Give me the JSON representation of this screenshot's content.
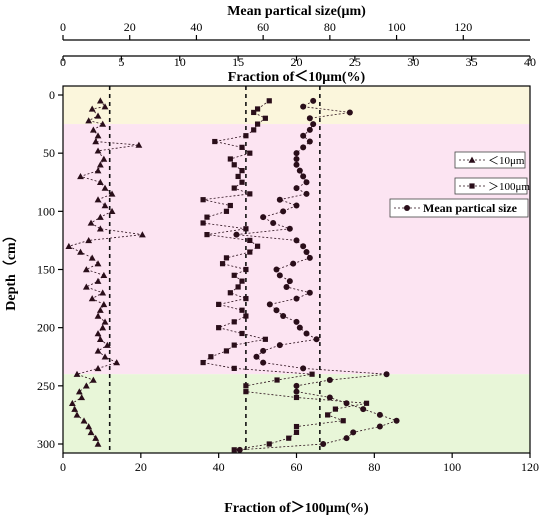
{
  "chart_data": {
    "type": "scatter",
    "title": "",
    "axes": {
      "top1": {
        "label": "Mean partical size(μm)",
        "range": [
          0,
          140
        ],
        "ticks": [
          0,
          20,
          40,
          60,
          80,
          100,
          120
        ]
      },
      "top2": {
        "label": "Fraction of＜10μm(%)",
        "range": [
          0,
          40
        ],
        "ticks": [
          0,
          5,
          10,
          15,
          20,
          25,
          30,
          35,
          40
        ]
      },
      "bottom": {
        "label": "Fraction of＞100μm(%)",
        "range": [
          0,
          120
        ],
        "ticks": [
          0,
          20,
          40,
          60,
          80,
          100,
          120
        ]
      },
      "left": {
        "label": "Depth（cm）",
        "range": [
          0,
          310
        ],
        "ticks": [
          0,
          50,
          100,
          150,
          200,
          250,
          300
        ],
        "reversed": true
      }
    },
    "bands": [
      {
        "from": 0,
        "to": 25,
        "color": "#fbf6dc"
      },
      {
        "from": 25,
        "to": 240,
        "color": "#fce4f2"
      },
      {
        "from": 240,
        "to": 310,
        "color": "#e8f6d8"
      }
    ],
    "series": [
      {
        "name": "＜10μm",
        "axis": "top2",
        "marker": "triangle",
        "color": "#2a0e1a",
        "mean_line": 4,
        "depth": [
          5,
          10,
          12,
          18,
          22,
          25,
          30,
          35,
          40,
          43,
          48,
          55,
          60,
          65,
          70,
          75,
          80,
          85,
          90,
          95,
          100,
          105,
          110,
          115,
          120,
          125,
          130,
          135,
          140,
          145,
          150,
          155,
          160,
          165,
          170,
          175,
          180,
          185,
          190,
          195,
          200,
          205,
          210,
          215,
          220,
          225,
          230,
          235,
          240,
          245,
          250,
          255,
          260,
          265,
          270,
          275,
          280,
          285,
          290,
          295,
          300
        ],
        "values": [
          3.2,
          3.6,
          2.5,
          3.0,
          2.2,
          3.4,
          2.6,
          3.0,
          2.8,
          6.5,
          3.0,
          3.5,
          3.2,
          3.0,
          1.5,
          3.2,
          3.6,
          4.2,
          3.0,
          3.6,
          4.2,
          3.2,
          2.4,
          3.2,
          6.8,
          2.2,
          0.5,
          1.5,
          2.5,
          3.0,
          2.0,
          3.5,
          3.0,
          2.0,
          3.4,
          2.5,
          3.5,
          3.2,
          3.0,
          3.6,
          3.4,
          3.0,
          3.2,
          3.8,
          3.0,
          3.6,
          4.6,
          3.0,
          1.2,
          2.6,
          2.0,
          1.4,
          1.6,
          0.8,
          1.0,
          1.2,
          1.8,
          2.2,
          2.4,
          2.8,
          3.0
        ]
      },
      {
        "name": "＞100μm",
        "axis": "bottom",
        "marker": "square",
        "color": "#2a0e1a",
        "mean_line": 47,
        "depth": [
          5,
          12,
          15,
          20,
          25,
          30,
          35,
          40,
          45,
          50,
          55,
          60,
          65,
          70,
          75,
          80,
          85,
          90,
          95,
          100,
          105,
          110,
          115,
          120,
          125,
          130,
          135,
          140,
          145,
          150,
          155,
          160,
          165,
          170,
          175,
          180,
          185,
          190,
          195,
          200,
          205,
          210,
          215,
          220,
          225,
          230,
          235,
          240,
          245,
          250,
          255,
          260,
          265,
          270,
          275,
          280,
          285,
          290,
          295,
          300,
          305
        ],
        "values": [
          53,
          50,
          49,
          52,
          50,
          49,
          47,
          39,
          46,
          48,
          43,
          44,
          46,
          45,
          46,
          44,
          48,
          36,
          43,
          42,
          37,
          36,
          47,
          37,
          48,
          50,
          48,
          42,
          41,
          47,
          44,
          46,
          45,
          43,
          47,
          40,
          46,
          47,
          44,
          40,
          46,
          52,
          44,
          42,
          38,
          36,
          44,
          64,
          55,
          47,
          47,
          60,
          78,
          70,
          68,
          72,
          60,
          60,
          58,
          53,
          44
        ]
      },
      {
        "name": "Mean partical size",
        "axis": "top1",
        "marker": "circle",
        "color": "#2a0e1a",
        "mean_line": 77,
        "depth": [
          5,
          10,
          15,
          20,
          25,
          30,
          35,
          40,
          45,
          50,
          55,
          60,
          65,
          70,
          75,
          80,
          85,
          90,
          95,
          100,
          105,
          110,
          115,
          120,
          125,
          130,
          135,
          140,
          145,
          150,
          155,
          160,
          165,
          170,
          175,
          180,
          185,
          190,
          195,
          200,
          205,
          210,
          215,
          220,
          225,
          230,
          235,
          240,
          245,
          250,
          255,
          260,
          265,
          270,
          275,
          280,
          285,
          290,
          295,
          300,
          305
        ],
        "values": [
          75,
          72,
          86,
          74,
          75,
          74,
          72,
          74,
          72,
          70,
          70,
          70,
          71,
          72,
          73,
          70,
          73,
          65,
          70,
          66,
          60,
          63,
          68,
          52,
          70,
          72,
          73,
          74,
          69,
          64,
          65,
          68,
          67,
          74,
          70,
          62,
          64,
          66,
          70,
          71,
          73,
          76,
          65,
          60,
          58,
          60,
          72,
          97,
          80,
          70,
          70,
          80,
          85,
          90,
          95,
          100,
          95,
          87,
          85,
          78,
          53
        ]
      }
    ],
    "legend": {
      "placement": "right",
      "entries": [
        "＜10μm",
        "＞100μm",
        "Mean partical size"
      ]
    }
  }
}
